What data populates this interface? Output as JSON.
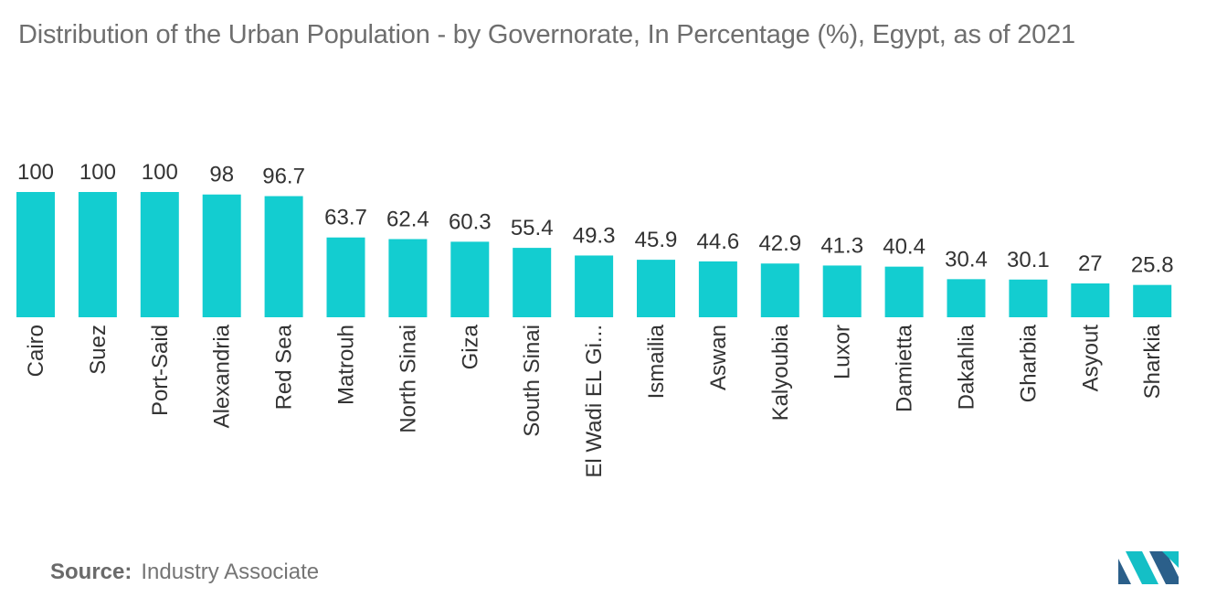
{
  "chart_data": {
    "type": "bar",
    "title": "Distribution of the Urban Population - by Governorate, In Percentage (%), Egypt, as of 2021",
    "categories": [
      "Cairo",
      "Suez",
      "Port-Said",
      "Alexandria",
      "Red Sea",
      "Matrouh",
      "North Sinai",
      "Giza",
      "South Sinai",
      "El Wadi EL Gi...",
      "Ismailia",
      "Aswan",
      "Kalyoubia",
      "Luxor",
      "Damietta",
      "Dakahlia",
      "Gharbia",
      "Asyout",
      "Sharkia"
    ],
    "values": [
      100,
      100,
      100,
      98,
      96.7,
      63.7,
      62.4,
      60.3,
      55.4,
      49.3,
      45.9,
      44.6,
      42.9,
      41.3,
      40.4,
      30.4,
      30.1,
      27,
      25.8
    ],
    "value_labels": [
      "100",
      "100",
      "100",
      "98",
      "96.7",
      "63.7",
      "62.4",
      "60.3",
      "55.4",
      "49.3",
      "45.9",
      "44.6",
      "42.9",
      "41.3",
      "40.4",
      "30.4",
      "30.1",
      "27",
      "25.8"
    ],
    "xlabel": "",
    "ylabel": "",
    "ylim": [
      0,
      100
    ],
    "grid": false,
    "legend": "none",
    "bar_color": "#13cdd0"
  },
  "source": {
    "label": "Source:",
    "text": "Industry Associate"
  },
  "colors": {
    "title": "#6e6e6e",
    "value_label": "#333333",
    "category_label": "#333333",
    "logo_dark": "#2b5f8a",
    "logo_light": "#14bfc6"
  }
}
